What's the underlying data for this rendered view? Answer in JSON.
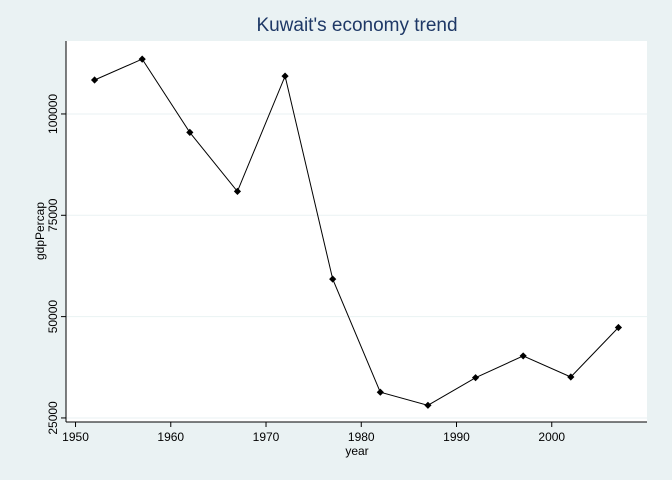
{
  "chart_data": {
    "type": "line",
    "title": "Kuwait's economy trend",
    "xlabel": "year",
    "ylabel": "gdpPercap",
    "x": [
      1952,
      1957,
      1962,
      1967,
      1972,
      1977,
      1982,
      1987,
      1992,
      1997,
      2002,
      2007
    ],
    "series": [
      {
        "values": [
          108382,
          113523,
          95458,
          80895,
          109348,
          59265,
          31354,
          28118,
          34933,
          40301,
          35110,
          47307
        ]
      }
    ],
    "xlim": [
      1949,
      2010
    ],
    "ylim": [
      24000,
      118000
    ],
    "xticks": [
      "1950",
      "1960",
      "1970",
      "1980",
      "1990",
      "2000"
    ],
    "yticks": [
      "25000",
      "50000",
      "75000",
      "100000"
    ],
    "grid": true,
    "colors": {
      "background": "#eaf2f3",
      "plot": "#ffffff",
      "title": "#1e3866",
      "line": "#000000",
      "grid": "#eaf2f3"
    }
  }
}
